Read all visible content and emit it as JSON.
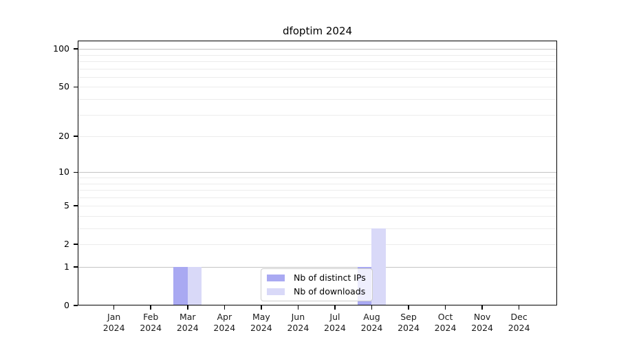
{
  "title": "dfoptim 2024",
  "chart_data": {
    "type": "bar",
    "title": "dfoptim 2024",
    "categories": [
      "Jan",
      "Feb",
      "Mar",
      "Apr",
      "May",
      "Jun",
      "Jul",
      "Aug",
      "Sep",
      "Oct",
      "Nov",
      "Dec"
    ],
    "year": "2024",
    "series": [
      {
        "name": "Nb of distinct IPs",
        "color": "#a9a9f2",
        "values": [
          0,
          0,
          1,
          0,
          0,
          0,
          0,
          1,
          0,
          0,
          0,
          0
        ]
      },
      {
        "name": "Nb of downloads",
        "color": "#d9d9f8",
        "values": [
          0,
          0,
          1,
          0,
          0,
          0,
          0,
          3,
          0,
          0,
          0,
          0
        ]
      }
    ],
    "xlabel": "",
    "ylabel": "",
    "scale": "log10(1+x)",
    "ylim": [
      0,
      113
    ],
    "y_ticks": [
      0,
      1,
      2,
      5,
      10,
      20,
      50,
      100
    ],
    "major_gridlines": [
      1,
      10,
      100
    ],
    "minor_gridlines": [
      2,
      3,
      4,
      5,
      6,
      7,
      8,
      9,
      20,
      30,
      40,
      50,
      60,
      70,
      80,
      90
    ],
    "grid": true,
    "legend_position": "bottom-center"
  }
}
